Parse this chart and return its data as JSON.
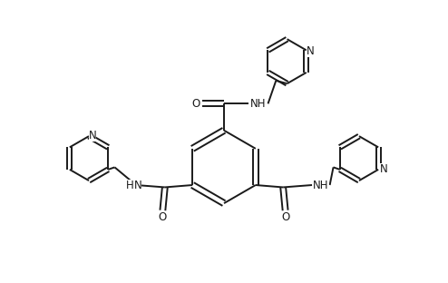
{
  "background_color": "#ffffff",
  "line_color": "#1a1a1a",
  "line_width": 1.4,
  "font_size": 8.5,
  "figsize": [
    4.94,
    3.12
  ],
  "dpi": 100,
  "xlim": [
    0,
    9.88
  ],
  "ylim": [
    0,
    6.24
  ]
}
